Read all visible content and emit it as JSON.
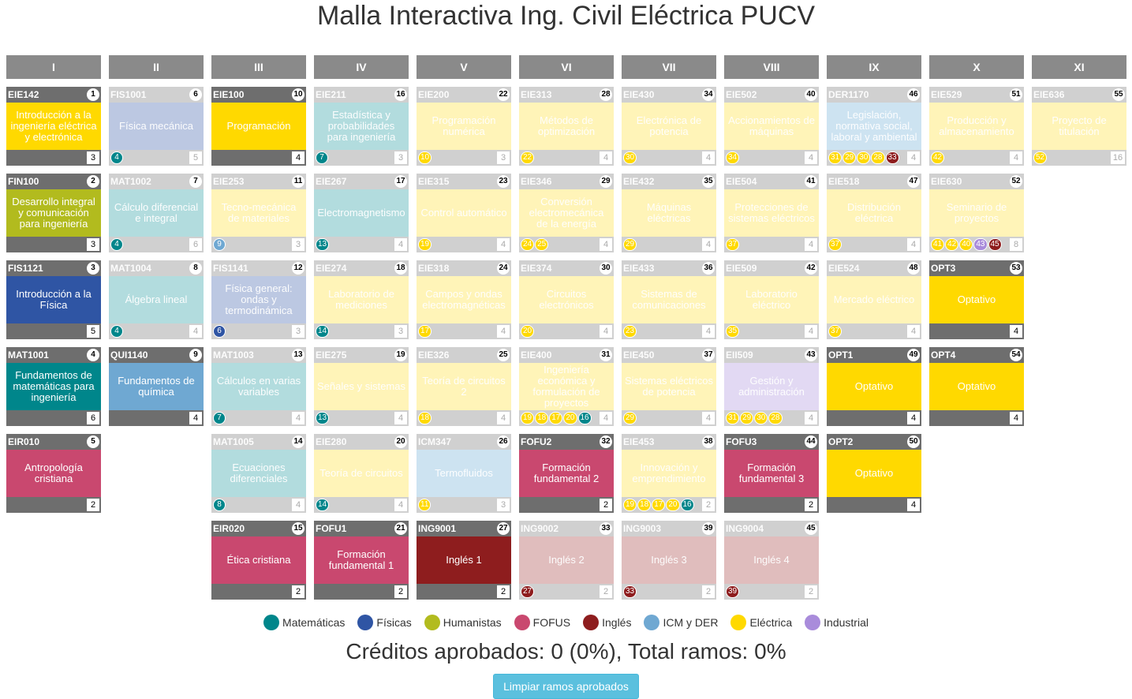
{
  "title": "Malla Interactiva Ing. Civil Eléctrica PUCV",
  "semesters": [
    "I",
    "II",
    "III",
    "IV",
    "V",
    "VI",
    "VII",
    "VIII",
    "IX",
    "X",
    "XI"
  ],
  "categories": {
    "MAT": {
      "label": "Matemáticas",
      "color": "#00868B"
    },
    "FIS": {
      "label": "Físicas",
      "color": "#2F55A4"
    },
    "HUM": {
      "label": "Humanistas",
      "color": "#B2BB1E"
    },
    "FOFU": {
      "label": "FOFUS",
      "color": "#C9486F"
    },
    "ING": {
      "label": "Inglés",
      "color": "#8E1D1E"
    },
    "ICM": {
      "label": "ICM y DER",
      "color": "#6FA8D2"
    },
    "ELE": {
      "label": "Eléctrica",
      "color": "#FFD900"
    },
    "IND": {
      "label": "Industrial",
      "color": "#A98CDB"
    },
    "OPT": {
      "label": "",
      "color": "#FFD900"
    }
  },
  "ramos": [
    {
      "sem": 0,
      "row": 0,
      "code": "EIE142",
      "num": "1",
      "name": "Introducción a la ingeniería eléctrica y electrónica",
      "cred": "3",
      "cat": "ELE",
      "dim": false,
      "reqs": []
    },
    {
      "sem": 0,
      "row": 1,
      "code": "FIN100",
      "num": "2",
      "name": "Desarrollo integral y comunicación para ingeniería",
      "cred": "3",
      "cat": "HUM",
      "dim": false,
      "reqs": []
    },
    {
      "sem": 0,
      "row": 2,
      "code": "FIS1121",
      "num": "3",
      "name": "Introducción a la Física",
      "cred": "5",
      "cat": "FIS",
      "dim": false,
      "reqs": []
    },
    {
      "sem": 0,
      "row": 3,
      "code": "MAT1001",
      "num": "4",
      "name": "Fundamentos de matemáticas para ingeniería",
      "cred": "6",
      "cat": "MAT",
      "dim": false,
      "reqs": []
    },
    {
      "sem": 0,
      "row": 4,
      "code": "EIR010",
      "num": "5",
      "name": "Antropología cristiana",
      "cred": "2",
      "cat": "FOFU",
      "dim": false,
      "reqs": []
    },
    {
      "sem": 1,
      "row": 0,
      "code": "FIS1001",
      "num": "6",
      "name": "Física mecánica",
      "cred": "5",
      "cat": "FIS",
      "dim": true,
      "reqs": [
        [
          "4",
          "MAT"
        ]
      ]
    },
    {
      "sem": 1,
      "row": 1,
      "code": "MAT1002",
      "num": "7",
      "name": "Cálculo diferencial e integral",
      "cred": "6",
      "cat": "MAT",
      "dim": true,
      "reqs": [
        [
          "4",
          "MAT"
        ]
      ]
    },
    {
      "sem": 1,
      "row": 2,
      "code": "MAT1004",
      "num": "8",
      "name": "Álgebra lineal",
      "cred": "4",
      "cat": "MAT",
      "dim": true,
      "reqs": [
        [
          "4",
          "MAT"
        ]
      ]
    },
    {
      "sem": 1,
      "row": 3,
      "code": "QUI1140",
      "num": "9",
      "name": "Fundamentos de química",
      "cred": "4",
      "cat": "ICM",
      "dim": false,
      "reqs": []
    },
    {
      "sem": 2,
      "row": 0,
      "code": "EIE100",
      "num": "10",
      "name": "Programación",
      "cred": "4",
      "cat": "ELE",
      "dim": false,
      "reqs": []
    },
    {
      "sem": 2,
      "row": 1,
      "code": "EIE253",
      "num": "11",
      "name": "Tecno-mecánica de materiales",
      "cred": "3",
      "cat": "ELE",
      "dim": true,
      "reqs": [
        [
          "9",
          "ICM"
        ]
      ]
    },
    {
      "sem": 2,
      "row": 2,
      "code": "FIS1141",
      "num": "12",
      "name": "Física general: ondas y termodinámica",
      "cred": "3",
      "cat": "FIS",
      "dim": true,
      "reqs": [
        [
          "6",
          "FIS"
        ]
      ]
    },
    {
      "sem": 2,
      "row": 3,
      "code": "MAT1003",
      "num": "13",
      "name": "Cálculos en varias variables",
      "cred": "4",
      "cat": "MAT",
      "dim": true,
      "reqs": [
        [
          "7",
          "MAT"
        ]
      ]
    },
    {
      "sem": 2,
      "row": 4,
      "code": "MAT1005",
      "num": "14",
      "name": "Ecuaciones diferenciales",
      "cred": "4",
      "cat": "MAT",
      "dim": true,
      "reqs": [
        [
          "8",
          "MAT"
        ]
      ]
    },
    {
      "sem": 2,
      "row": 5,
      "code": "EIR020",
      "num": "15",
      "name": "Ética cristiana",
      "cred": "2",
      "cat": "FOFU",
      "dim": false,
      "reqs": []
    },
    {
      "sem": 3,
      "row": 0,
      "code": "EIE211",
      "num": "16",
      "name": "Estadística y probabilidades para ingeniería",
      "cred": "3",
      "cat": "MAT",
      "dim": true,
      "reqs": [
        [
          "7",
          "MAT"
        ]
      ]
    },
    {
      "sem": 3,
      "row": 1,
      "code": "EIE267",
      "num": "17",
      "name": "Electromagnetismo",
      "cred": "4",
      "cat": "MAT",
      "dim": true,
      "reqs": [
        [
          "13",
          "MAT"
        ]
      ]
    },
    {
      "sem": 3,
      "row": 2,
      "code": "EIE274",
      "num": "18",
      "name": "Laboratorio de mediciones",
      "cred": "3",
      "cat": "ELE",
      "dim": true,
      "reqs": [
        [
          "14",
          "MAT"
        ]
      ]
    },
    {
      "sem": 3,
      "row": 3,
      "code": "EIE275",
      "num": "19",
      "name": "Señales y sistemas",
      "cred": "4",
      "cat": "ELE",
      "dim": true,
      "reqs": [
        [
          "13",
          "MAT"
        ]
      ]
    },
    {
      "sem": 3,
      "row": 4,
      "code": "EIE280",
      "num": "20",
      "name": "Teoría de circuitos",
      "cred": "4",
      "cat": "ELE",
      "dim": true,
      "reqs": [
        [
          "14",
          "MAT"
        ]
      ]
    },
    {
      "sem": 3,
      "row": 5,
      "code": "FOFU1",
      "num": "21",
      "name": "Formación fundamental 1",
      "cred": "2",
      "cat": "FOFU",
      "dim": false,
      "reqs": []
    },
    {
      "sem": 4,
      "row": 0,
      "code": "EIE200",
      "num": "22",
      "name": "Programación numérica",
      "cred": "3",
      "cat": "ELE",
      "dim": true,
      "reqs": [
        [
          "10",
          "ELE"
        ]
      ]
    },
    {
      "sem": 4,
      "row": 1,
      "code": "EIE315",
      "num": "23",
      "name": "Control automático",
      "cred": "4",
      "cat": "ELE",
      "dim": true,
      "reqs": [
        [
          "19",
          "ELE"
        ]
      ]
    },
    {
      "sem": 4,
      "row": 2,
      "code": "EIE318",
      "num": "24",
      "name": "Campos y ondas electromagnéticas",
      "cred": "4",
      "cat": "ELE",
      "dim": true,
      "reqs": [
        [
          "17",
          "ELE"
        ]
      ]
    },
    {
      "sem": 4,
      "row": 3,
      "code": "EIE326",
      "num": "25",
      "name": "Teoría de circuitos 2",
      "cred": "4",
      "cat": "ELE",
      "dim": true,
      "reqs": [
        [
          "18",
          "ELE"
        ]
      ]
    },
    {
      "sem": 4,
      "row": 4,
      "code": "ICM347",
      "num": "26",
      "name": "Termofluidos",
      "cred": "3",
      "cat": "ICM",
      "dim": true,
      "reqs": [
        [
          "11",
          "ELE"
        ]
      ]
    },
    {
      "sem": 4,
      "row": 5,
      "code": "ING9001",
      "num": "27",
      "name": "Inglés 1",
      "cred": "2",
      "cat": "ING",
      "dim": false,
      "reqs": []
    },
    {
      "sem": 5,
      "row": 0,
      "code": "EIE313",
      "num": "28",
      "name": "Métodos de optimización",
      "cred": "4",
      "cat": "ELE",
      "dim": true,
      "reqs": [
        [
          "22",
          "ELE"
        ]
      ]
    },
    {
      "sem": 5,
      "row": 1,
      "code": "EIE346",
      "num": "29",
      "name": "Conversión electromecánica de la energía",
      "cred": "4",
      "cat": "ELE",
      "dim": true,
      "reqs": [
        [
          "24",
          "ELE"
        ],
        [
          "25",
          "ELE"
        ]
      ]
    },
    {
      "sem": 5,
      "row": 2,
      "code": "EIE374",
      "num": "30",
      "name": "Circuitos electrónicos",
      "cred": "4",
      "cat": "ELE",
      "dim": true,
      "reqs": [
        [
          "20",
          "ELE"
        ]
      ]
    },
    {
      "sem": 5,
      "row": 3,
      "code": "EIE400",
      "num": "31",
      "name": "Ingeniería económica y formulación de proyectos",
      "cred": "4",
      "cat": "ELE",
      "dim": true,
      "reqs": [
        [
          "19",
          "ELE"
        ],
        [
          "18",
          "ELE"
        ],
        [
          "17",
          "ELE"
        ],
        [
          "20",
          "ELE"
        ],
        [
          "16",
          "MAT"
        ]
      ]
    },
    {
      "sem": 5,
      "row": 4,
      "code": "FOFU2",
      "num": "32",
      "name": "Formación fundamental 2",
      "cred": "2",
      "cat": "FOFU",
      "dim": false,
      "reqs": []
    },
    {
      "sem": 5,
      "row": 5,
      "code": "ING9002",
      "num": "33",
      "name": "Inglés 2",
      "cred": "2",
      "cat": "ING",
      "dim": true,
      "reqs": [
        [
          "27",
          "ING"
        ]
      ]
    },
    {
      "sem": 6,
      "row": 0,
      "code": "EIE430",
      "num": "34",
      "name": "Electrónica de potencia",
      "cred": "4",
      "cat": "ELE",
      "dim": true,
      "reqs": [
        [
          "30",
          "ELE"
        ]
      ]
    },
    {
      "sem": 6,
      "row": 1,
      "code": "EIE432",
      "num": "35",
      "name": "Máquinas eléctricas",
      "cred": "4",
      "cat": "ELE",
      "dim": true,
      "reqs": [
        [
          "29",
          "ELE"
        ]
      ]
    },
    {
      "sem": 6,
      "row": 2,
      "code": "EIE433",
      "num": "36",
      "name": "Sistemas de comunicaciones",
      "cred": "4",
      "cat": "ELE",
      "dim": true,
      "reqs": [
        [
          "23",
          "ELE"
        ]
      ]
    },
    {
      "sem": 6,
      "row": 3,
      "code": "EIE450",
      "num": "37",
      "name": "Sistemas eléctricos de potencia",
      "cred": "4",
      "cat": "ELE",
      "dim": true,
      "reqs": [
        [
          "29",
          "ELE"
        ]
      ]
    },
    {
      "sem": 6,
      "row": 4,
      "code": "EIE453",
      "num": "38",
      "name": "Innovación y emprendimiento",
      "cred": "2",
      "cat": "ELE",
      "dim": true,
      "reqs": [
        [
          "19",
          "ELE"
        ],
        [
          "18",
          "ELE"
        ],
        [
          "17",
          "ELE"
        ],
        [
          "20",
          "ELE"
        ],
        [
          "16",
          "MAT"
        ]
      ]
    },
    {
      "sem": 6,
      "row": 5,
      "code": "ING9003",
      "num": "39",
      "name": "Inglés 3",
      "cred": "2",
      "cat": "ING",
      "dim": true,
      "reqs": [
        [
          "33",
          "ING"
        ]
      ]
    },
    {
      "sem": 7,
      "row": 0,
      "code": "EIE502",
      "num": "40",
      "name": "Accionamientos de máquinas",
      "cred": "4",
      "cat": "ELE",
      "dim": true,
      "reqs": [
        [
          "34",
          "ELE"
        ]
      ]
    },
    {
      "sem": 7,
      "row": 1,
      "code": "EIE504",
      "num": "41",
      "name": "Protecciones de sistemas eléctricos",
      "cred": "4",
      "cat": "ELE",
      "dim": true,
      "reqs": [
        [
          "37",
          "ELE"
        ]
      ]
    },
    {
      "sem": 7,
      "row": 2,
      "code": "EIE509",
      "num": "42",
      "name": "Laboratorio eléctrico",
      "cred": "4",
      "cat": "ELE",
      "dim": true,
      "reqs": [
        [
          "35",
          "ELE"
        ]
      ]
    },
    {
      "sem": 7,
      "row": 3,
      "code": "EII509",
      "num": "43",
      "name": "Gestión y administración",
      "cred": "4",
      "cat": "IND",
      "dim": true,
      "reqs": [
        [
          "31",
          "ELE"
        ],
        [
          "29",
          "ELE"
        ],
        [
          "30",
          "ELE"
        ],
        [
          "28",
          "ELE"
        ]
      ]
    },
    {
      "sem": 7,
      "row": 4,
      "code": "FOFU3",
      "num": "44",
      "name": "Formación fundamental 3",
      "cred": "2",
      "cat": "FOFU",
      "dim": false,
      "reqs": []
    },
    {
      "sem": 7,
      "row": 5,
      "code": "ING9004",
      "num": "45",
      "name": "Inglés 4",
      "cred": "2",
      "cat": "ING",
      "dim": true,
      "reqs": [
        [
          "39",
          "ING"
        ]
      ]
    },
    {
      "sem": 8,
      "row": 0,
      "code": "DER1170",
      "num": "46",
      "name": "Legislación, normativa social, laboral y ambiental",
      "cred": "4",
      "cat": "ICM",
      "dim": true,
      "reqs": [
        [
          "31",
          "ELE"
        ],
        [
          "29",
          "ELE"
        ],
        [
          "30",
          "ELE"
        ],
        [
          "28",
          "ELE"
        ],
        [
          "33",
          "ING"
        ]
      ]
    },
    {
      "sem": 8,
      "row": 1,
      "code": "EIE518",
      "num": "47",
      "name": "Distribución eléctrica",
      "cred": "4",
      "cat": "ELE",
      "dim": true,
      "reqs": [
        [
          "37",
          "ELE"
        ]
      ]
    },
    {
      "sem": 8,
      "row": 2,
      "code": "EIE524",
      "num": "48",
      "name": "Mercado eléctrico",
      "cred": "4",
      "cat": "ELE",
      "dim": true,
      "reqs": [
        [
          "37",
          "ELE"
        ]
      ]
    },
    {
      "sem": 8,
      "row": 3,
      "code": "OPT1",
      "num": "49",
      "name": "Optativo",
      "cred": "4",
      "cat": "OPT",
      "dim": false,
      "reqs": []
    },
    {
      "sem": 8,
      "row": 4,
      "code": "OPT2",
      "num": "50",
      "name": "Optativo",
      "cred": "4",
      "cat": "OPT",
      "dim": false,
      "reqs": []
    },
    {
      "sem": 9,
      "row": 0,
      "code": "EIE529",
      "num": "51",
      "name": "Producción y almacenamiento",
      "cred": "4",
      "cat": "ELE",
      "dim": true,
      "reqs": [
        [
          "42",
          "ELE"
        ]
      ]
    },
    {
      "sem": 9,
      "row": 1,
      "code": "EIE630",
      "num": "52",
      "name": "Seminario de proyectos",
      "cred": "8",
      "cat": "ELE",
      "dim": true,
      "reqs": [
        [
          "41",
          "ELE"
        ],
        [
          "42",
          "ELE"
        ],
        [
          "40",
          "ELE"
        ],
        [
          "43",
          "IND"
        ],
        [
          "45",
          "ING"
        ]
      ]
    },
    {
      "sem": 9,
      "row": 2,
      "code": "OPT3",
      "num": "53",
      "name": "Optativo",
      "cred": "4",
      "cat": "OPT",
      "dim": false,
      "reqs": []
    },
    {
      "sem": 9,
      "row": 3,
      "code": "OPT4",
      "num": "54",
      "name": "Optativo",
      "cred": "4",
      "cat": "OPT",
      "dim": false,
      "reqs": []
    },
    {
      "sem": 10,
      "row": 0,
      "code": "EIE636",
      "num": "55",
      "name": "Proyecto de titulación",
      "cred": "16",
      "cat": "ELE",
      "dim": true,
      "reqs": [
        [
          "52",
          "ELE"
        ]
      ]
    }
  ],
  "legend": [
    "MAT",
    "FIS",
    "HUM",
    "FOFU",
    "ING",
    "ICM",
    "ELE",
    "IND"
  ],
  "credits_text": "Créditos aprobados: 0 (0%), Total ramos: 0%",
  "reset_label": "Limpiar ramos aprobados"
}
